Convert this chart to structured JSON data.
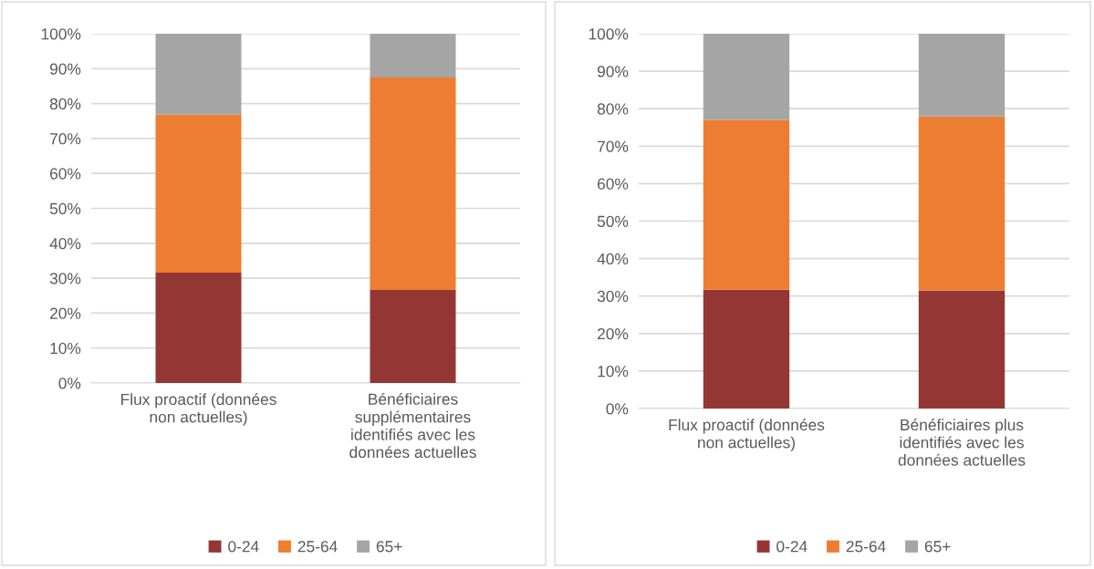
{
  "chart_data": [
    {
      "type": "bar",
      "stacked": true,
      "categories": [
        "Flux proactif (données\nnon actuelles)",
        "Bénéficiaires\nsupplémentaires\nidentifiés avec les\ndonnées actuelles"
      ],
      "series": [
        {
          "name": "0-24",
          "color": "#943634",
          "values": [
            31.6,
            26.6
          ]
        },
        {
          "name": "25-64",
          "color": "#ed7d31",
          "values": [
            45.2,
            60.9
          ]
        },
        {
          "name": "65+",
          "color": "#a5a5a5",
          "values": [
            23.2,
            12.5
          ]
        }
      ],
      "ylim": [
        0,
        100
      ],
      "yticks": [
        {
          "value": 0,
          "label": "0%"
        },
        {
          "value": 10,
          "label": "10%"
        },
        {
          "value": 20,
          "label": "20%"
        },
        {
          "value": 30,
          "label": "30%"
        },
        {
          "value": 40,
          "label": "40%"
        },
        {
          "value": 50,
          "label": "50%"
        },
        {
          "value": 60,
          "label": "60%"
        },
        {
          "value": 70,
          "label": "70%"
        },
        {
          "value": 80,
          "label": "80%"
        },
        {
          "value": 90,
          "label": "90%"
        },
        {
          "value": 100,
          "label": "100%"
        }
      ],
      "grid": "y",
      "legend": "bottom"
    },
    {
      "type": "bar",
      "stacked": true,
      "categories": [
        "Flux proactif (données\nnon actuelles)",
        "Bénéficiaires plus\nidentifiés avec les\ndonnées actuelles"
      ],
      "series": [
        {
          "name": "0-24",
          "color": "#943634",
          "values": [
            31.7,
            31.5
          ]
        },
        {
          "name": "25-64",
          "color": "#ed7d31",
          "values": [
            45.3,
            46.4
          ]
        },
        {
          "name": "65+",
          "color": "#a5a5a5",
          "values": [
            23.0,
            22.1
          ]
        }
      ],
      "ylim": [
        0,
        100
      ],
      "yticks": [
        {
          "value": 0,
          "label": "0%"
        },
        {
          "value": 10,
          "label": "10%"
        },
        {
          "value": 20,
          "label": "20%"
        },
        {
          "value": 30,
          "label": "30%"
        },
        {
          "value": 40,
          "label": "40%"
        },
        {
          "value": 50,
          "label": "50%"
        },
        {
          "value": 60,
          "label": "60%"
        },
        {
          "value": 70,
          "label": "70%"
        },
        {
          "value": 80,
          "label": "80%"
        },
        {
          "value": 90,
          "label": "90%"
        },
        {
          "value": 100,
          "label": "100%"
        }
      ],
      "grid": "y",
      "legend": "bottom"
    }
  ]
}
